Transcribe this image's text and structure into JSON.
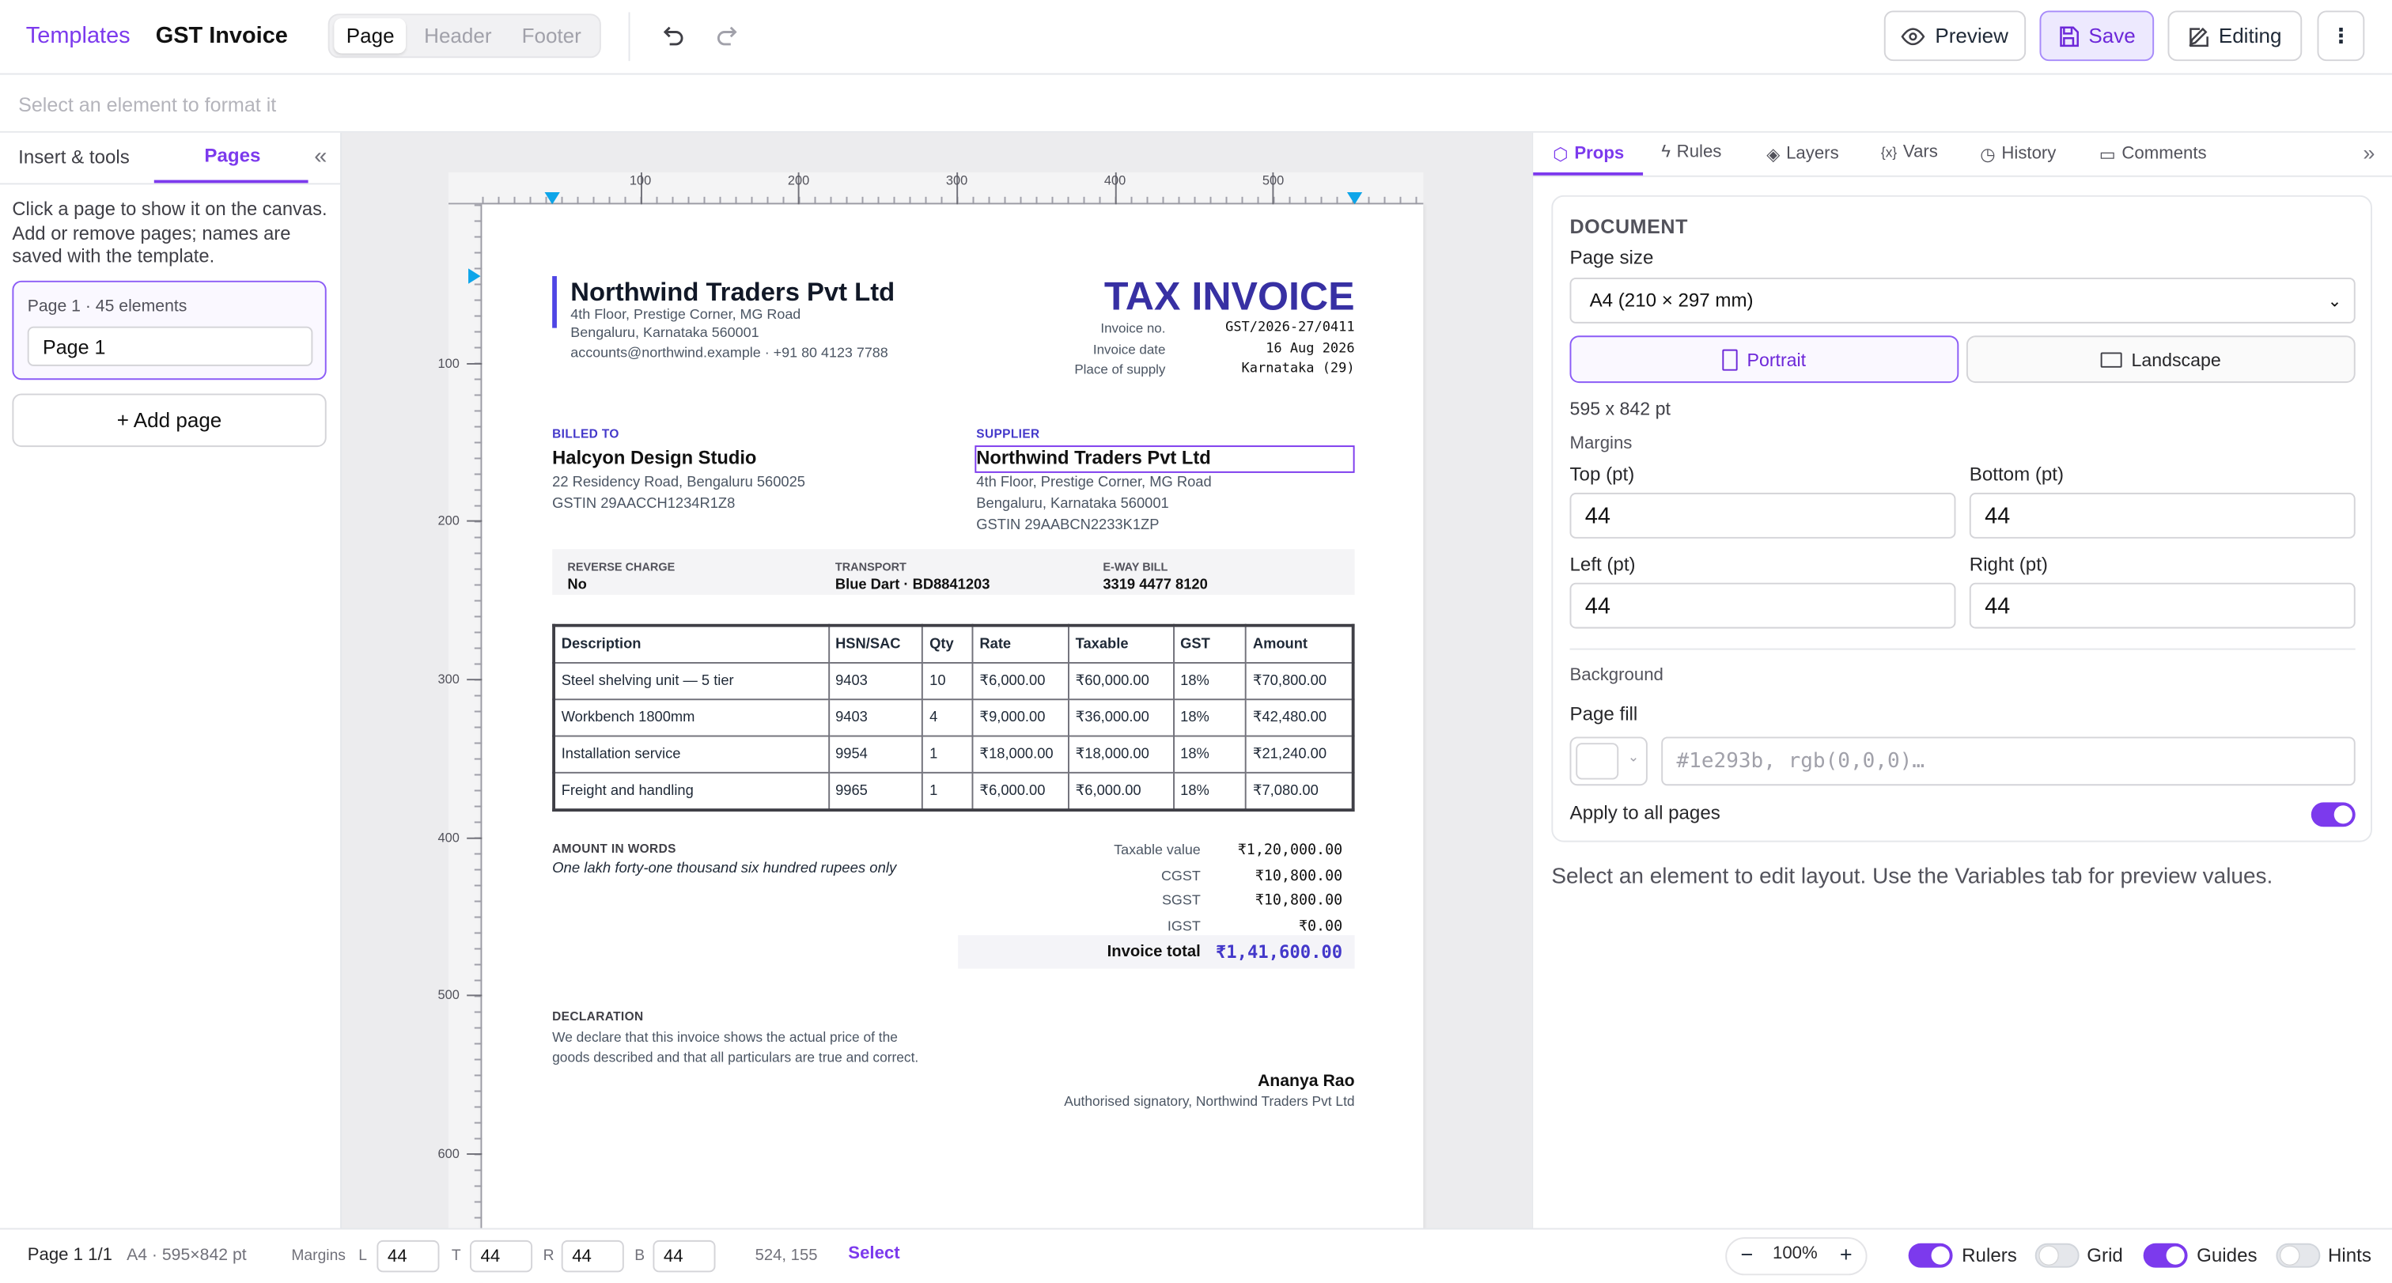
{
  "toolbar": {
    "breadcrumb": "Templates",
    "title": "GST Invoice",
    "tabs": [
      "Page",
      "Header",
      "Footer"
    ],
    "preview": "Preview",
    "save": "Save",
    "editing": "Editing"
  },
  "format_hint": "Select an element to format it",
  "left_panel": {
    "tabs": [
      "Insert & tools",
      "Pages"
    ],
    "help": "Click a page to show it on the canvas. Add or remove pages; names are saved with the template.",
    "page_card": {
      "meta": "Page 1 · 45 elements",
      "name": "Page 1"
    },
    "add_page": "+ Add page"
  },
  "ruler": {
    "x_ticks": [
      100,
      200,
      300,
      400,
      500
    ],
    "y_ticks": [
      100,
      200,
      300,
      400,
      500,
      600
    ]
  },
  "invoice": {
    "company": {
      "name": "Northwind Traders Pvt Ltd",
      "lines": [
        "4th Floor, Prestige Corner, MG Road",
        "Bengaluru, Karnataka 560001",
        "accounts@northwind.example · +91 80 4123 7788"
      ]
    },
    "title": "TAX INVOICE",
    "meta": [
      [
        "Invoice no.",
        "GST/2026-27/0411"
      ],
      [
        "Invoice date",
        "16 Aug 2026"
      ],
      [
        "Place of supply",
        "Karnataka (29)"
      ]
    ],
    "billed_to": {
      "label": "BILLED TO",
      "name": "Halcyon Design Studio",
      "lines": [
        "22 Residency Road, Bengaluru 560025",
        "GSTIN 29AACCH1234R1Z8"
      ]
    },
    "supplier": {
      "label": "SUPPLIER",
      "name": "Northwind Traders Pvt Ltd",
      "lines": [
        "4th Floor, Prestige Corner, MG Road",
        "Bengaluru, Karnataka 560001",
        "GSTIN 29AABCN2233K1ZP"
      ]
    },
    "info": [
      [
        "REVERSE CHARGE",
        "No"
      ],
      [
        "TRANSPORT",
        "Blue Dart · BD8841203"
      ],
      [
        "E-WAY BILL",
        "3319 4477 8120"
      ]
    ],
    "table": {
      "columns": [
        "Description",
        "HSN/SAC",
        "Qty",
        "Rate",
        "Taxable",
        "GST",
        "Amount"
      ],
      "rows": [
        [
          "Steel shelving unit — 5 tier",
          "9403",
          "10",
          "₹6,000.00",
          "₹60,000.00",
          "18%",
          "₹70,800.00"
        ],
        [
          "Workbench 1800mm",
          "9403",
          "4",
          "₹9,000.00",
          "₹36,000.00",
          "18%",
          "₹42,480.00"
        ],
        [
          "Installation service",
          "9954",
          "1",
          "₹18,000.00",
          "₹18,000.00",
          "18%",
          "₹21,240.00"
        ],
        [
          "Freight and handling",
          "9965",
          "1",
          "₹6,000.00",
          "₹6,000.00",
          "18%",
          "₹7,080.00"
        ]
      ]
    },
    "amount_words": {
      "label": "AMOUNT IN WORDS",
      "text": "One lakh forty-one thousand six hundred rupees only"
    },
    "totals": [
      [
        "Taxable value",
        "₹1,20,000.00"
      ],
      [
        "CGST",
        "₹10,800.00"
      ],
      [
        "SGST",
        "₹10,800.00"
      ],
      [
        "IGST",
        "₹0.00"
      ]
    ],
    "invoice_total": [
      "Invoice total",
      "₹1,41,600.00"
    ],
    "declaration": {
      "label": "DECLARATION",
      "lines": [
        "We declare that this invoice shows the actual price of the",
        "goods described and that all particulars are true and correct."
      ]
    },
    "signatory": {
      "name": "Ananya Rao",
      "role": "Authorised signatory, Northwind Traders Pvt Ltd"
    }
  },
  "right_panel": {
    "tabs": [
      "Props",
      "Rules",
      "Layers",
      "Vars",
      "History",
      "Comments"
    ],
    "section": "DOCUMENT",
    "page_size_label": "Page size",
    "page_size": "A4 (210 × 297 mm)",
    "orientation": [
      "Portrait",
      "Landscape"
    ],
    "dimensions": "595 x 842 pt",
    "margins_label": "Margins",
    "margins": [
      [
        "Top (pt)",
        "44"
      ],
      [
        "Bottom (pt)",
        "44"
      ],
      [
        "Left (pt)",
        "44"
      ],
      [
        "Right (pt)",
        "44"
      ]
    ],
    "background_label": "Background",
    "page_fill_label": "Page fill",
    "page_fill_placeholder": "#1e293b, rgb(0,0,0)…",
    "apply_all": "Apply to all pages",
    "hint": "Select an element to edit layout. Use the Variables tab for preview values."
  },
  "status_bar": {
    "page": "Page 1 1/1",
    "size": "A4 · 595×842 pt",
    "margins_label": "Margins",
    "margins": [
      [
        "L",
        "44"
      ],
      [
        "T",
        "44"
      ],
      [
        "R",
        "44"
      ],
      [
        "B",
        "44"
      ]
    ],
    "cursor": "524, 155",
    "tool": "Select",
    "zoom": "100%",
    "toggles": [
      "Rulers",
      "Grid",
      "Guides",
      "Hints"
    ]
  }
}
